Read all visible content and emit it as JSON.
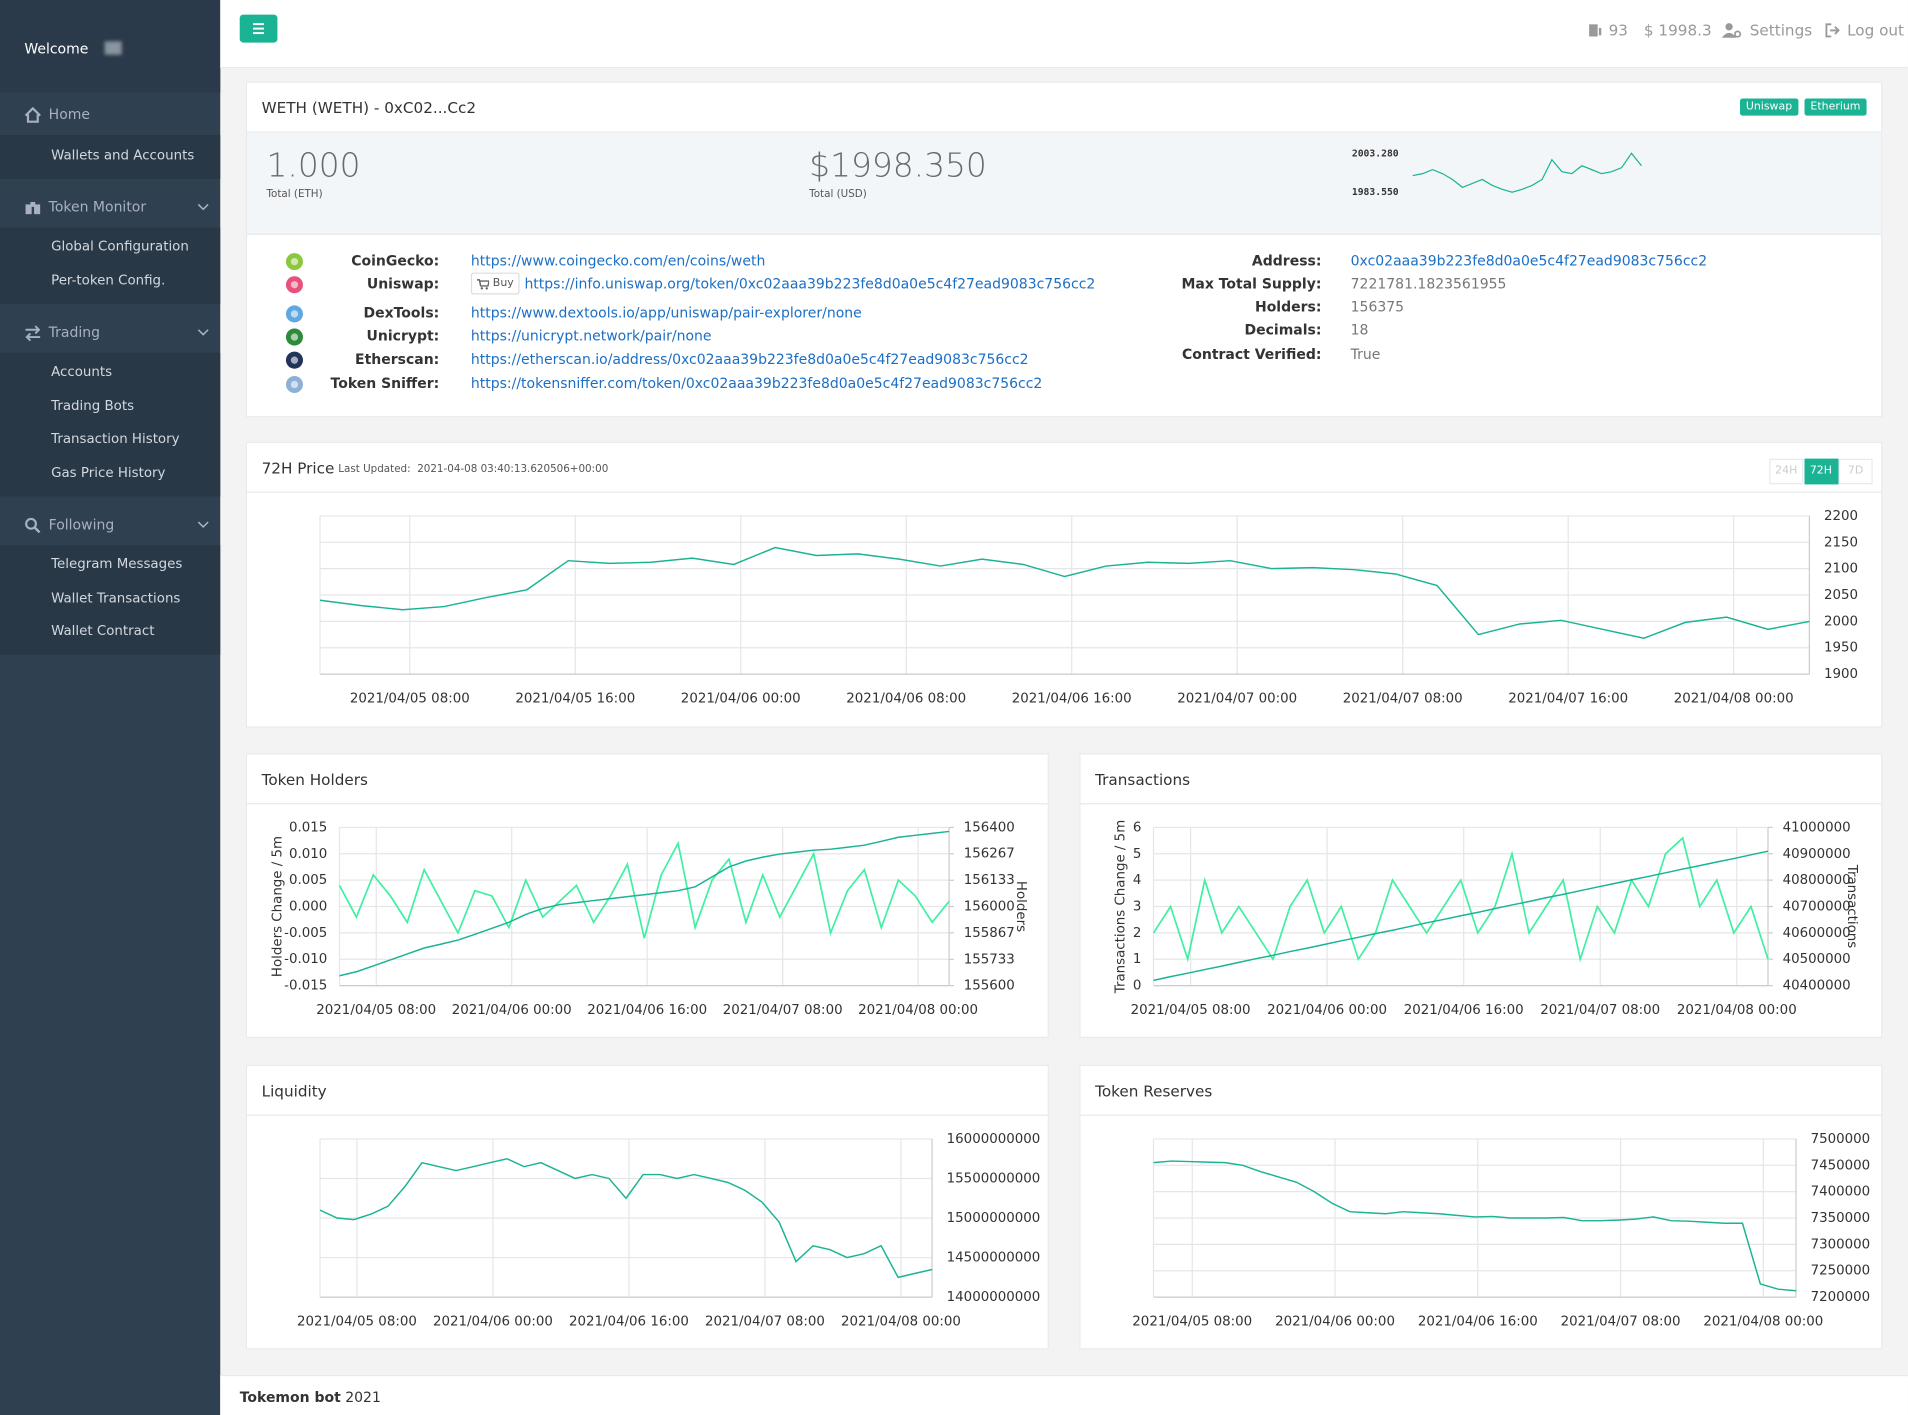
{
  "sidebar": {
    "welcome": "Welcome",
    "menu": [
      {
        "label": "Home",
        "collapsible": false,
        "items": [
          "Wallets and Accounts"
        ]
      },
      {
        "label": "Token Monitor",
        "collapsible": true,
        "items": [
          "Global Configuration",
          "Per-token Config."
        ]
      },
      {
        "label": "Trading",
        "collapsible": true,
        "items": [
          "Accounts",
          "Trading Bots",
          "Transaction History",
          "Gas Price History"
        ]
      },
      {
        "label": "Following",
        "collapsible": true,
        "items": [
          "Telegram Messages",
          "Wallet Transactions",
          "Wallet Contract"
        ]
      }
    ]
  },
  "topbar": {
    "gas": "93",
    "balance": "$ 1998.3",
    "settings": "Settings",
    "logout": "Log out"
  },
  "token": {
    "title": "WETH (WETH) - 0xC02...Cc2",
    "badges": [
      "Uniswap",
      "Etherium"
    ],
    "stats": [
      {
        "value": "1.000",
        "label": "Total (ETH)"
      },
      {
        "value": "$1998.350",
        "label": "Total (USD)"
      }
    ],
    "links": [
      {
        "label": "CoinGecko:",
        "url": "https://www.coingecko.com/en/coins/weth"
      },
      {
        "label": "Uniswap:",
        "buy": "Buy",
        "url": "https://info.uniswap.org/token/0xc02aaa39b223fe8d0a0e5c4f27ead9083c756cc2"
      },
      {
        "label": "DexTools:",
        "url": "https://www.dextools.io/app/uniswap/pair-explorer/none"
      },
      {
        "label": "Unicrypt:",
        "url": "https://unicrypt.network/pair/none"
      },
      {
        "label": "Etherscan:",
        "url": "https://etherscan.io/address/0xc02aaa39b223fe8d0a0e5c4f27ead9083c756cc2"
      },
      {
        "label": "Token Sniffer:",
        "url": "https://tokensniffer.com/token/0xc02aaa39b223fe8d0a0e5c4f27ead9083c756cc2"
      }
    ],
    "properties": [
      {
        "label": "Address:",
        "value": "0xc02aaa39b223fe8d0a0e5c4f27ead9083c756cc2"
      },
      {
        "label": "Max Total Supply:",
        "value": "7221781.1823561955"
      },
      {
        "label": "Holders:",
        "value": "156375"
      },
      {
        "label": "Decimals:",
        "value": "18"
      },
      {
        "label": "Contract Verified:",
        "value": "True"
      }
    ]
  },
  "price_panel": {
    "last_updated_label": "Last Updated:",
    "last_updated": "2021-04-08 03:40:13.620506+00:00",
    "range_buttons": [
      "24H",
      "72H",
      "7D"
    ],
    "active_index": 1
  },
  "chart_data": [
    {
      "type": "sparkline",
      "color": "#1ab394",
      "values": [
        1992,
        1993,
        1995,
        1993,
        1990,
        1986,
        1988,
        1990,
        1987,
        1985,
        1983.55,
        1985,
        1987,
        1990,
        2000,
        1994,
        1993,
        1997,
        1995,
        1993,
        1994,
        1996,
        2003.28,
        1997
      ],
      "ylim": [
        1983.55,
        2003.28
      ],
      "yticks": [
        {
          "value": 2003.28,
          "label": "2003.280"
        },
        {
          "value": 1983.55,
          "label": "1983.550"
        }
      ]
    },
    {
      "type": "line",
      "title": "72H Price",
      "color": "#1ab394",
      "grid": true,
      "y_axis_side": "right",
      "values": [
        2040,
        2030,
        2022,
        2028,
        2045,
        2060,
        2115,
        2110,
        2112,
        2120,
        2108,
        2140,
        2125,
        2128,
        2118,
        2105,
        2118,
        2108,
        2085,
        2105,
        2112,
        2110,
        2115,
        2100,
        2102,
        2098,
        2090,
        2068,
        1975,
        1995,
        2002,
        1985,
        1968,
        1998,
        2008,
        1985,
        2000
      ],
      "xlim": [
        0,
        36
      ],
      "xticks": [
        {
          "value": 2.17,
          "label": "2021/04/05 08:00"
        },
        {
          "value": 6.17,
          "label": "2021/04/05 16:00"
        },
        {
          "value": 10.17,
          "label": "2021/04/06 00:00"
        },
        {
          "value": 14.17,
          "label": "2021/04/06 08:00"
        },
        {
          "value": 18.17,
          "label": "2021/04/06 16:00"
        },
        {
          "value": 22.17,
          "label": "2021/04/07 00:00"
        },
        {
          "value": 26.17,
          "label": "2021/04/07 08:00"
        },
        {
          "value": 30.17,
          "label": "2021/04/07 16:00"
        },
        {
          "value": 34.17,
          "label": "2021/04/08 00:00"
        }
      ],
      "ylim": [
        1900,
        2200
      ],
      "yticks": [
        1900,
        1950,
        2000,
        2050,
        2100,
        2150,
        2200
      ]
    },
    {
      "type": "line",
      "title": "Token Holders",
      "grid": true,
      "ylabel": "Holders Change / 5m",
      "y2label": "Holders",
      "xlim": [
        0,
        36
      ],
      "xticks": [
        {
          "value": 2.17,
          "label": "2021/04/05 08:00"
        },
        {
          "value": 10.17,
          "label": "2021/04/06 00:00"
        },
        {
          "value": 18.17,
          "label": "2021/04/06 16:00"
        },
        {
          "value": 26.17,
          "label": "2021/04/07 08:00"
        },
        {
          "value": 34.17,
          "label": "2021/04/08 00:00"
        }
      ],
      "ylim": [
        -0.015,
        0.015
      ],
      "yticks": [
        -0.015,
        {
          "value": -0.01,
          "label": "-0.010"
        },
        -0.005,
        {
          "value": 0,
          "label": "0.000"
        },
        0.005,
        {
          "value": 0.01,
          "label": "0.010"
        },
        0.015
      ],
      "y2lim": [
        155600,
        156400
      ],
      "y2ticks": [
        155600,
        155733,
        155867,
        156000,
        156133,
        156267,
        156400
      ],
      "series": [
        {
          "color": "#3ff0a2",
          "values": [
            0.004,
            -0.002,
            0.006,
            0.002,
            -0.003,
            0.007,
            0.001,
            -0.005,
            0.003,
            0.002,
            -0.004,
            0.005,
            -0.002,
            0.001,
            0.004,
            -0.003,
            0.002,
            0.008,
            -0.006,
            0.006,
            0.012,
            -0.004,
            0.005,
            0.009,
            -0.003,
            0.006,
            -0.002,
            0.004,
            0.01,
            -0.005,
            0.003,
            0.007,
            -0.004,
            0.005,
            0.002,
            -0.003,
            0.001
          ]
        },
        {
          "color": "#1ab394",
          "axis": "y2",
          "values": [
            155650,
            155670,
            155700,
            155730,
            155760,
            155790,
            155810,
            155830,
            155860,
            155890,
            155920,
            155960,
            155990,
            156010,
            156020,
            156030,
            156040,
            156050,
            156060,
            156070,
            156080,
            156100,
            156150,
            156200,
            156230,
            156250,
            156265,
            156275,
            156285,
            156290,
            156300,
            156310,
            156330,
            156350,
            156360,
            156370,
            156380
          ]
        }
      ]
    },
    {
      "type": "line",
      "title": "Transactions",
      "grid": true,
      "ylabel": "Transactions Change / 5m",
      "y2label": "Transactions",
      "xlim": [
        0,
        36
      ],
      "xticks": [
        {
          "value": 2.17,
          "label": "2021/04/05 08:00"
        },
        {
          "value": 10.17,
          "label": "2021/04/06 00:00"
        },
        {
          "value": 18.17,
          "label": "2021/04/06 16:00"
        },
        {
          "value": 26.17,
          "label": "2021/04/07 08:00"
        },
        {
          "value": 34.17,
          "label": "2021/04/08 00:00"
        }
      ],
      "ylim": [
        0,
        6
      ],
      "yticks": [
        0,
        1,
        2,
        3,
        4,
        5,
        6
      ],
      "y2lim": [
        40400000,
        41000000
      ],
      "y2ticks": [
        40400000,
        40500000,
        40600000,
        40700000,
        40800000,
        40900000,
        41000000
      ],
      "series": [
        {
          "color": "#3ff0a2",
          "values": [
            2,
            3,
            1,
            4,
            2,
            3,
            2,
            1,
            3,
            4,
            2,
            3,
            1,
            2,
            4,
            3,
            2,
            3,
            4,
            2,
            3,
            5,
            2,
            3,
            4,
            1,
            3,
            2,
            4,
            3,
            5,
            5.6,
            3,
            4,
            2,
            3,
            1
          ]
        },
        {
          "color": "#1ab394",
          "axis": "y2",
          "values": [
            40420000,
            40434000,
            40447000,
            40461000,
            40474000,
            40488000,
            40502000,
            40515000,
            40529000,
            40542000,
            40556000,
            40570000,
            40583000,
            40597000,
            40610000,
            40624000,
            40638000,
            40651000,
            40665000,
            40678000,
            40692000,
            40706000,
            40719000,
            40733000,
            40746000,
            40760000,
            40774000,
            40787000,
            40801000,
            40814000,
            40828000,
            40842000,
            40855000,
            40869000,
            40882000,
            40896000,
            40910000
          ]
        }
      ]
    },
    {
      "type": "line",
      "title": "Liquidity",
      "color": "#1ab394",
      "grid": true,
      "y_axis_side": "right",
      "values": [
        15100000000,
        15000000000,
        14980000000,
        15050000000,
        15150000000,
        15400000000,
        15700000000,
        15650000000,
        15600000000,
        15650000000,
        15700000000,
        15750000000,
        15650000000,
        15700000000,
        15600000000,
        15500000000,
        15550000000,
        15500000000,
        15250000000,
        15550000000,
        15550000000,
        15500000000,
        15550000000,
        15500000000,
        15450000000,
        15350000000,
        15200000000,
        14950000000,
        14450000000,
        14650000000,
        14600000000,
        14500000000,
        14550000000,
        14650000000,
        14250000000,
        14300000000,
        14350000000
      ],
      "xlim": [
        0,
        36
      ],
      "xticks": [
        {
          "value": 2.17,
          "label": "2021/04/05 08:00"
        },
        {
          "value": 10.17,
          "label": "2021/04/06 00:00"
        },
        {
          "value": 18.17,
          "label": "2021/04/06 16:00"
        },
        {
          "value": 26.17,
          "label": "2021/04/07 08:00"
        },
        {
          "value": 34.17,
          "label": "2021/04/08 00:00"
        }
      ],
      "ylim": [
        14000000000,
        16000000000
      ],
      "yticks": [
        14000000000,
        14500000000,
        15000000000,
        15500000000,
        16000000000
      ]
    },
    {
      "type": "line",
      "title": "Token Reserves",
      "color": "#1ab394",
      "grid": true,
      "y_axis_side": "right",
      "values": [
        7455000,
        7458000,
        7457000,
        7456000,
        7455000,
        7450000,
        7438000,
        7428000,
        7418000,
        7400000,
        7378000,
        7362000,
        7360000,
        7358000,
        7362000,
        7360000,
        7358000,
        7355000,
        7352000,
        7353000,
        7350000,
        7350000,
        7350000,
        7351000,
        7345000,
        7345000,
        7346000,
        7348000,
        7352000,
        7345000,
        7344000,
        7342000,
        7340000,
        7340000,
        7225000,
        7215000,
        7212000
      ],
      "xlim": [
        0,
        36
      ],
      "xticks": [
        {
          "value": 2.17,
          "label": "2021/04/05 08:00"
        },
        {
          "value": 10.17,
          "label": "2021/04/06 00:00"
        },
        {
          "value": 18.17,
          "label": "2021/04/06 16:00"
        },
        {
          "value": 26.17,
          "label": "2021/04/07 08:00"
        },
        {
          "value": 34.17,
          "label": "2021/04/08 00:00"
        }
      ],
      "ylim": [
        7200000,
        7500000
      ],
      "yticks": [
        7200000,
        7250000,
        7300000,
        7350000,
        7400000,
        7450000,
        7500000
      ]
    }
  ],
  "footer": {
    "brand": "Tokemon bot",
    "year": "2021"
  }
}
